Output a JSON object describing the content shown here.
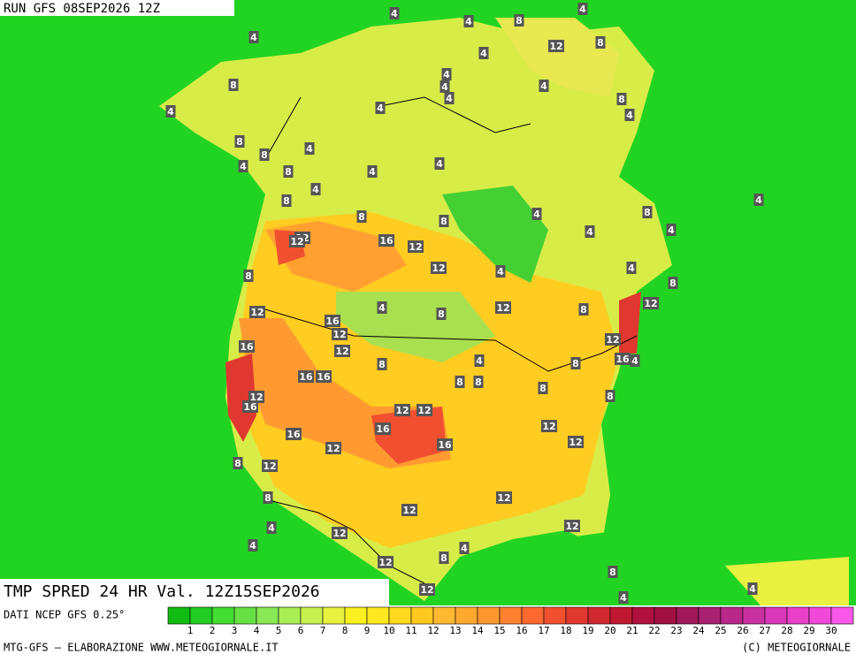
{
  "header": {
    "run": "RUN GFS 08SEP2026 12Z",
    "title": "TMP SPRED 24 HR Val. 12Z15SEP2026",
    "source": "DATI NCEP GFS 0.25°",
    "footer_left": "MTG-GFS — ELABORAZIONE WWW.METEOGIORNALE.IT",
    "footer_right": "(C) METEOGIORNALE"
  },
  "legend": {
    "ticks": [
      1,
      2,
      3,
      4,
      5,
      6,
      7,
      8,
      9,
      10,
      11,
      12,
      13,
      14,
      15,
      16,
      17,
      18,
      19,
      20,
      21,
      22,
      23,
      24,
      25,
      26,
      27,
      28,
      29,
      30
    ],
    "colors": [
      "#11bb11",
      "#22cc22",
      "#44dd33",
      "#66e044",
      "#88e855",
      "#a8ee55",
      "#c8f050",
      "#e8f040",
      "#f8f020",
      "#ffe820",
      "#ffd820",
      "#ffc820",
      "#ffb830",
      "#ffa830",
      "#ff9830",
      "#ff8030",
      "#ff6830",
      "#f05030",
      "#e03830",
      "#d02830",
      "#c01830",
      "#b01040",
      "#a01040",
      "#a01858",
      "#a82070",
      "#b82888",
      "#c830a0",
      "#d838b8",
      "#e840c8",
      "#f048d8",
      "#f858e8"
    ]
  },
  "map": {
    "contour_labels": [
      4,
      8,
      4,
      4,
      12,
      8,
      4,
      4,
      4,
      8,
      4,
      4,
      4,
      8,
      4,
      4,
      4,
      8,
      8,
      4,
      4,
      4,
      8,
      4,
      4,
      8,
      4,
      8,
      4,
      8,
      8,
      4,
      4,
      12,
      12,
      16,
      12,
      12,
      4,
      4,
      8,
      8,
      12,
      12,
      4,
      12,
      8,
      16,
      8,
      12,
      12,
      16,
      12,
      16,
      4,
      8,
      4,
      8,
      16,
      16,
      8,
      8,
      8,
      12,
      8,
      16,
      12,
      12,
      12,
      16,
      16,
      12,
      12,
      16,
      8,
      12,
      8,
      12,
      12,
      4,
      12,
      12,
      4,
      4,
      8,
      12,
      8,
      12,
      4,
      4
    ]
  }
}
